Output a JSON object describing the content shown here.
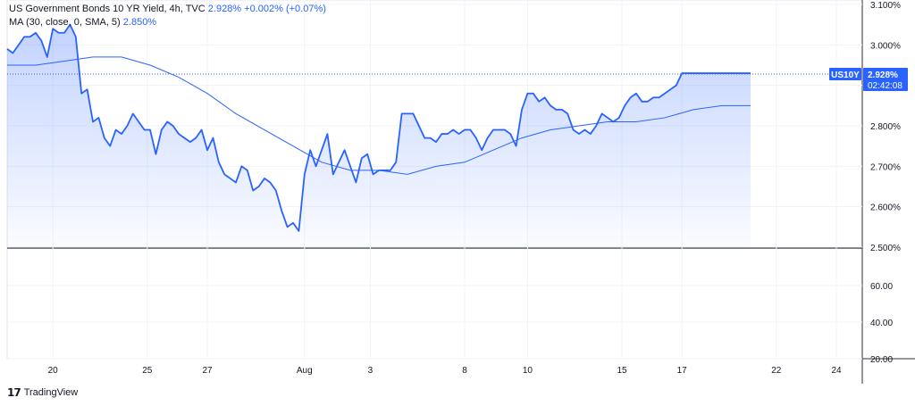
{
  "legend": {
    "main_title": "US Government Bonds 10 YR Yield, 4h, TVC",
    "main_last": "2.928%",
    "main_change": "+0.002% (+0.07%)",
    "ma_title": "MA (30, close, 0, SMA, 5)",
    "ma_value": "2.850%"
  },
  "price_labels": {
    "symbol": "US10Y",
    "last": "2.928%",
    "countdown": "02:42:08"
  },
  "footer": {
    "brand": "TradingView"
  },
  "colors": {
    "line": "#2962ff",
    "ma": "#2962ff",
    "fill": "#2962ff",
    "grid": "#f0f3fa"
  },
  "chart_data": {
    "type": "area",
    "main": {
      "ylim": [
        2.5,
        3.1
      ],
      "yticks": [
        "3.100%",
        "3.000%",
        "2.900%",
        "2.800%",
        "2.700%",
        "2.600%",
        "2.500%"
      ],
      "ytick_values": [
        3.1,
        3.0,
        2.9,
        2.8,
        2.7,
        2.6,
        2.5
      ],
      "xlim": [
        0,
        130
      ],
      "x_tick_labels": [
        "20",
        "25",
        "27",
        "Aug",
        "3",
        "8",
        "10",
        "15",
        "17",
        "22",
        "24"
      ],
      "x_tick_positions": [
        8,
        24.5,
        35,
        52,
        63.5,
        80,
        91,
        107.5,
        118,
        134.5,
        145
      ],
      "series": [
        {
          "kind": "price",
          "x": [
            0,
            1,
            2,
            3,
            4,
            5,
            6,
            7,
            8,
            9,
            10,
            11,
            12,
            13,
            14,
            15,
            16,
            17,
            18,
            19,
            20,
            21,
            22,
            23,
            24,
            25,
            26,
            27,
            28,
            29,
            30,
            31,
            32,
            33,
            34,
            35,
            36,
            37,
            38,
            39,
            40,
            41,
            42,
            43,
            44,
            45,
            46,
            47,
            48,
            49,
            50,
            51,
            52,
            53,
            54,
            55,
            56,
            57,
            58,
            59,
            60,
            61,
            62,
            63,
            64,
            65,
            66,
            67,
            68,
            69,
            70,
            71,
            72,
            73,
            74,
            75,
            76,
            77,
            78,
            79,
            80,
            81,
            82,
            83,
            84,
            85,
            86,
            87,
            88,
            89,
            90,
            91,
            92,
            93,
            94,
            95,
            96,
            97,
            98,
            99,
            100,
            101,
            102,
            103,
            104,
            105,
            106,
            107,
            108,
            109,
            110,
            111,
            112,
            113,
            114,
            115,
            116,
            117,
            118,
            119,
            120,
            121,
            122,
            123,
            124,
            125,
            126,
            127,
            128,
            129,
            130
          ],
          "values": [
            2.99,
            2.98,
            3.0,
            3.02,
            3.02,
            3.03,
            3.01,
            2.97,
            3.04,
            3.03,
            3.03,
            3.05,
            3.02,
            2.88,
            2.89,
            2.81,
            2.82,
            2.77,
            2.75,
            2.79,
            2.78,
            2.8,
            2.83,
            2.81,
            2.79,
            2.79,
            2.73,
            2.79,
            2.81,
            2.8,
            2.78,
            2.77,
            2.76,
            2.77,
            2.79,
            2.74,
            2.77,
            2.71,
            2.68,
            2.67,
            2.66,
            2.7,
            2.69,
            2.64,
            2.65,
            2.67,
            2.66,
            2.64,
            2.59,
            2.55,
            2.56,
            2.54,
            2.68,
            2.74,
            2.7,
            2.74,
            2.78,
            2.68,
            2.71,
            2.74,
            2.7,
            2.66,
            2.72,
            2.73,
            2.68,
            2.69,
            2.69,
            2.69,
            2.71,
            2.83,
            2.83,
            2.83,
            2.8,
            2.77,
            2.77,
            2.76,
            2.78,
            2.78,
            2.79,
            2.78,
            2.79,
            2.79,
            2.77,
            2.74,
            2.77,
            2.79,
            2.79,
            2.79,
            2.78,
            2.75,
            2.84,
            2.88,
            2.88,
            2.86,
            2.87,
            2.85,
            2.84,
            2.84,
            2.83,
            2.79,
            2.78,
            2.79,
            2.78,
            2.8,
            2.83,
            2.82,
            2.81,
            2.82,
            2.85,
            2.87,
            2.88,
            2.86,
            2.86,
            2.87,
            2.87,
            2.88,
            2.89,
            2.9,
            2.93,
            2.93,
            2.93,
            2.93,
            2.93,
            2.93,
            2.93,
            2.93,
            2.93,
            2.93,
            2.93,
            2.93,
            2.93
          ]
        },
        {
          "kind": "ma",
          "x": [
            0,
            5,
            10,
            15,
            20,
            25,
            30,
            35,
            40,
            45,
            50,
            55,
            60,
            65,
            70,
            75,
            80,
            85,
            90,
            95,
            100,
            105,
            110,
            115,
            120,
            125,
            130
          ],
          "values": [
            2.95,
            2.95,
            2.96,
            2.97,
            2.97,
            2.95,
            2.92,
            2.88,
            2.83,
            2.79,
            2.75,
            2.71,
            2.69,
            2.69,
            2.68,
            2.7,
            2.71,
            2.74,
            2.77,
            2.79,
            2.8,
            2.81,
            2.81,
            2.82,
            2.84,
            2.85,
            2.85
          ]
        }
      ],
      "last_value": 2.928
    },
    "lower": {
      "yticks": [
        "60.00",
        "40.00",
        "20.00"
      ],
      "ytick_values": [
        60,
        40,
        20
      ],
      "ylim": [
        20,
        80
      ]
    }
  }
}
